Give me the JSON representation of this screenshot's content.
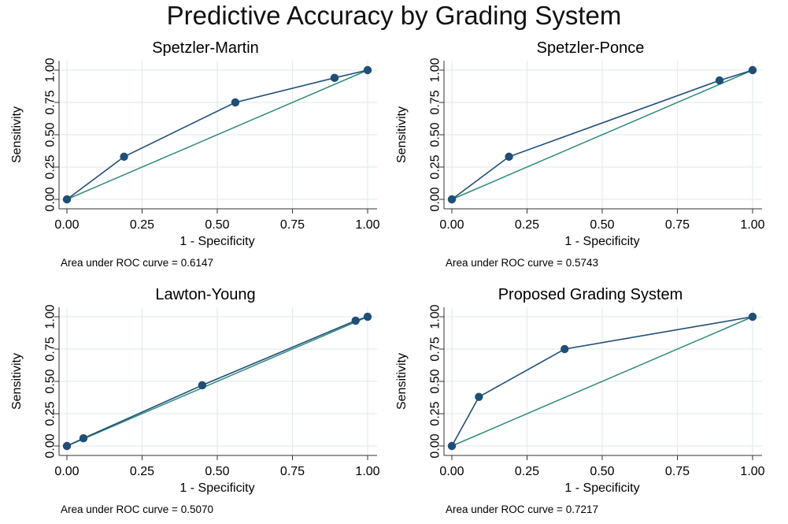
{
  "title": "Predictive Accuracy by Grading System",
  "colors": {
    "curve": "#1f4e79",
    "reference": "#2e8b7a",
    "grid": "#e3ecee",
    "axis": "#333333"
  },
  "chart_data": [
    {
      "type": "line",
      "title": "Spetzler-Martin",
      "xlabel": "1 - Specificity",
      "ylabel": "Sensitivity",
      "xlim": [
        0,
        1
      ],
      "ylim": [
        0,
        1
      ],
      "xticks": [
        "0.00",
        "0.25",
        "0.50",
        "0.75",
        "1.00"
      ],
      "yticks": [
        "0.00",
        "0.25",
        "0.50",
        "0.75",
        "1.00"
      ],
      "grid": true,
      "series": [
        {
          "x": [
            0.0,
            0.19,
            0.56,
            0.89,
            1.0
          ],
          "y": [
            0.0,
            0.33,
            0.75,
            0.94,
            1.0
          ]
        }
      ],
      "reference_line": {
        "x": [
          0,
          1
        ],
        "y": [
          0,
          1
        ]
      },
      "note": "Area under ROC curve = 0.6147"
    },
    {
      "type": "line",
      "title": "Spetzler-Ponce",
      "xlabel": "1 - Specificity",
      "ylabel": "Sensitivity",
      "xlim": [
        0,
        1
      ],
      "ylim": [
        0,
        1
      ],
      "xticks": [
        "0.00",
        "0.25",
        "0.50",
        "0.75",
        "1.00"
      ],
      "yticks": [
        "0.00",
        "0.25",
        "0.50",
        "0.75",
        "1.00"
      ],
      "grid": true,
      "series": [
        {
          "x": [
            0.0,
            0.19,
            0.89,
            1.0
          ],
          "y": [
            0.0,
            0.33,
            0.92,
            1.0
          ]
        }
      ],
      "reference_line": {
        "x": [
          0,
          1
        ],
        "y": [
          0,
          1
        ]
      },
      "note": "Area under ROC curve = 0.5743"
    },
    {
      "type": "line",
      "title": "Lawton-Young",
      "xlabel": "1 - Specificity",
      "ylabel": "Sensitivity",
      "xlim": [
        0,
        1
      ],
      "ylim": [
        0,
        1
      ],
      "xticks": [
        "0.00",
        "0.25",
        "0.50",
        "0.75",
        "1.00"
      ],
      "yticks": [
        "0.00",
        "0.25",
        "0.50",
        "0.75",
        "1.00"
      ],
      "grid": true,
      "series": [
        {
          "x": [
            0.0,
            0.055,
            0.45,
            0.96,
            1.0
          ],
          "y": [
            0.0,
            0.06,
            0.47,
            0.97,
            1.0
          ]
        }
      ],
      "reference_line": {
        "x": [
          0,
          1
        ],
        "y": [
          0,
          1
        ]
      },
      "note": "Area under ROC curve = 0.5070"
    },
    {
      "type": "line",
      "title": "Proposed Grading System",
      "xlabel": "1 - Specificity",
      "ylabel": "Sensitivity",
      "xlim": [
        0,
        1
      ],
      "ylim": [
        0,
        1
      ],
      "xticks": [
        "0.00",
        "0.25",
        "0.50",
        "0.75",
        "1.00"
      ],
      "yticks": [
        "0.00",
        "0.25",
        "0.50",
        "0.75",
        "1.00"
      ],
      "grid": true,
      "series": [
        {
          "x": [
            0.0,
            0.09,
            0.375,
            1.0
          ],
          "y": [
            0.0,
            0.38,
            0.75,
            1.0
          ]
        }
      ],
      "reference_line": {
        "x": [
          0,
          1
        ],
        "y": [
          0,
          1
        ]
      },
      "note": "Area under ROC curve = 0.7217"
    }
  ]
}
